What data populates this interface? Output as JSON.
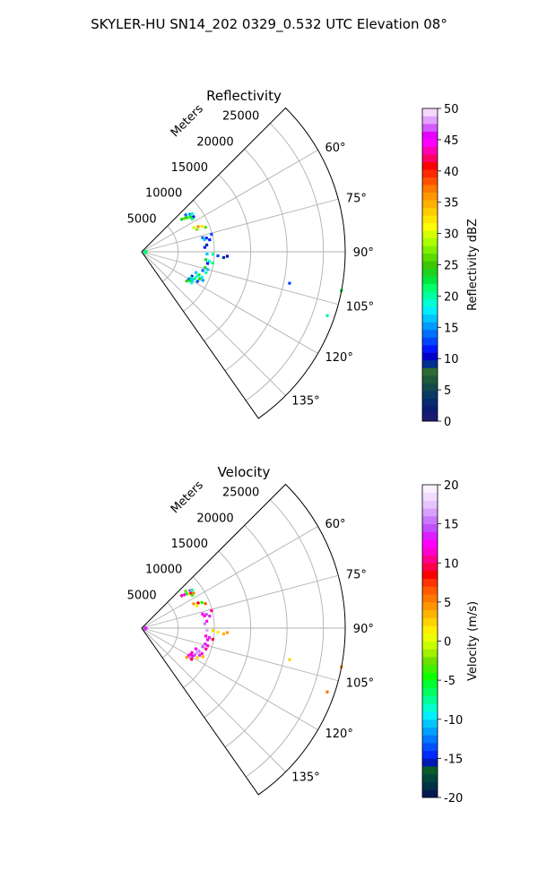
{
  "figure": {
    "suptitle": "SKYLER-HU  SN14_202  0329_0.532 UTC Elevation 08°"
  },
  "panels": [
    {
      "title": "Reflectivity",
      "range_axis_label": "Meters",
      "range_ticks": [
        "5000",
        "10000",
        "15000",
        "20000",
        "25000"
      ],
      "azimuth_ticks": [
        "60°",
        "75°",
        "90°",
        "105°",
        "120°",
        "135°"
      ],
      "colorbar": {
        "label": "Reflectivity dBZ",
        "ticks": [
          "0",
          "5",
          "10",
          "15",
          "20",
          "25",
          "30",
          "35",
          "40",
          "45",
          "50"
        ]
      }
    },
    {
      "title": "Velocity",
      "range_axis_label": "Meters",
      "range_ticks": [
        "5000",
        "10000",
        "15000",
        "20000",
        "25000"
      ],
      "azimuth_ticks": [
        "60°",
        "75°",
        "90°",
        "105°",
        "120°",
        "135°"
      ],
      "colorbar": {
        "label": "Velocity (m/s)",
        "ticks": [
          "-20",
          "-15",
          "-10",
          "-5",
          "0",
          "5",
          "10",
          "15",
          "20"
        ]
      }
    }
  ],
  "chart_data": [
    {
      "type": "heatmap",
      "projection": "polar-sector",
      "title": "Reflectivity",
      "range_label": "Meters",
      "range_lim": [
        0,
        28000
      ],
      "range_ticks": [
        5000,
        10000,
        15000,
        20000,
        25000
      ],
      "azimuth_lim_deg": [
        45,
        145
      ],
      "azimuth_ticks_deg": [
        60,
        75,
        90,
        105,
        120,
        135
      ],
      "grid": true,
      "colorbar": {
        "label": "Reflectivity dBZ",
        "vmin": 0,
        "vmax": 50,
        "steps": 40,
        "ticks": [
          0,
          5,
          10,
          15,
          20,
          25,
          30,
          35,
          40,
          45,
          50
        ]
      },
      "points": [
        {
          "az": 51,
          "r": 7100,
          "v": 24
        },
        {
          "az": 52,
          "r": 7500,
          "v": 26
        },
        {
          "az": 53,
          "r": 7800,
          "v": 22
        },
        {
          "az": 50,
          "r": 7900,
          "v": 14
        },
        {
          "az": 54,
          "r": 8100,
          "v": 28
        },
        {
          "az": 55,
          "r": 8300,
          "v": 23
        },
        {
          "az": 52,
          "r": 8400,
          "v": 15
        },
        {
          "az": 53,
          "r": 8700,
          "v": 19
        },
        {
          "az": 56,
          "r": 8600,
          "v": 12
        },
        {
          "az": 57,
          "r": 8300,
          "v": 21
        },
        {
          "az": 65,
          "r": 7900,
          "v": 30
        },
        {
          "az": 66,
          "r": 8500,
          "v": 36
        },
        {
          "az": 67,
          "r": 9000,
          "v": 32
        },
        {
          "az": 68,
          "r": 8200,
          "v": 27
        },
        {
          "az": 69,
          "r": 9400,
          "v": 26
        },
        {
          "az": 77,
          "r": 8600,
          "v": 14
        },
        {
          "az": 78,
          "r": 9100,
          "v": 12
        },
        {
          "az": 79,
          "r": 8800,
          "v": 16
        },
        {
          "az": 80,
          "r": 9500,
          "v": 11
        },
        {
          "az": 76,
          "r": 9900,
          "v": 13
        },
        {
          "az": 84,
          "r": 9000,
          "v": 9
        },
        {
          "az": 86,
          "r": 8700,
          "v": 11
        },
        {
          "az": 92,
          "r": 9000,
          "v": 17
        },
        {
          "az": 92,
          "r": 9800,
          "v": 20
        },
        {
          "az": 93,
          "r": 10500,
          "v": 13
        },
        {
          "az": 94,
          "r": 11300,
          "v": 9
        },
        {
          "az": 93,
          "r": 11800,
          "v": 10
        },
        {
          "az": 97,
          "r": 8900,
          "v": 23
        },
        {
          "az": 98,
          "r": 9400,
          "v": 19
        },
        {
          "az": 99,
          "r": 9900,
          "v": 21
        },
        {
          "az": 100,
          "r": 9200,
          "v": 12
        },
        {
          "az": 104,
          "r": 9000,
          "v": 24
        },
        {
          "az": 105,
          "r": 9400,
          "v": 16
        },
        {
          "az": 107,
          "r": 8800,
          "v": 14
        },
        {
          "az": 108,
          "r": 9300,
          "v": 20
        },
        {
          "az": 111,
          "r": 8000,
          "v": 16
        },
        {
          "az": 112,
          "r": 8500,
          "v": 22
        },
        {
          "az": 113,
          "r": 9000,
          "v": 18
        },
        {
          "az": 114,
          "r": 8300,
          "v": 19
        },
        {
          "az": 115,
          "r": 8800,
          "v": 24
        },
        {
          "az": 116,
          "r": 7700,
          "v": 12
        },
        {
          "az": 117,
          "r": 8200,
          "v": 21
        },
        {
          "az": 118,
          "r": 7700,
          "v": 20
        },
        {
          "az": 119,
          "r": 8000,
          "v": 17
        },
        {
          "az": 120,
          "r": 7500,
          "v": 14
        },
        {
          "az": 121,
          "r": 7800,
          "v": 22
        },
        {
          "az": 122,
          "r": 8100,
          "v": 19
        },
        {
          "az": 115,
          "r": 9300,
          "v": 15
        },
        {
          "az": 118,
          "r": 8700,
          "v": 13
        },
        {
          "az": 123,
          "r": 7400,
          "v": 24
        },
        {
          "az": 102,
          "r": 20800,
          "v": 13
        },
        {
          "az": 101,
          "r": 28000,
          "v": 22
        },
        {
          "az": 109,
          "r": 27000,
          "v": 20
        },
        {
          "az": 86,
          "r": 500,
          "v": 20
        },
        {
          "az": 92,
          "r": 600,
          "v": 22
        },
        {
          "az": 98,
          "r": 500,
          "v": 19
        },
        {
          "az": 104,
          "r": 500,
          "v": 21
        }
      ]
    },
    {
      "type": "heatmap",
      "projection": "polar-sector",
      "title": "Velocity",
      "range_label": "Meters",
      "range_lim": [
        0,
        28000
      ],
      "range_ticks": [
        5000,
        10000,
        15000,
        20000,
        25000
      ],
      "azimuth_lim_deg": [
        45,
        145
      ],
      "azimuth_ticks_deg": [
        60,
        75,
        90,
        105,
        120,
        135
      ],
      "grid": true,
      "colorbar": {
        "label": "Velocity (m/s)",
        "vmin": -20,
        "vmax": 20,
        "steps": 40,
        "ticks": [
          -20,
          -15,
          -10,
          -5,
          0,
          5,
          10,
          15,
          20
        ]
      },
      "points": [
        {
          "az": 51,
          "r": 7100,
          "v": 10
        },
        {
          "az": 52,
          "r": 7500,
          "v": 12
        },
        {
          "az": 53,
          "r": 7800,
          "v": -6
        },
        {
          "az": 50,
          "r": 7900,
          "v": -3
        },
        {
          "az": 54,
          "r": 8100,
          "v": 2
        },
        {
          "az": 55,
          "r": 8300,
          "v": 9
        },
        {
          "az": 52,
          "r": 8400,
          "v": 14
        },
        {
          "az": 53,
          "r": 8700,
          "v": -8
        },
        {
          "az": 56,
          "r": 8600,
          "v": 5
        },
        {
          "az": 57,
          "r": 8300,
          "v": -4
        },
        {
          "az": 65,
          "r": 7900,
          "v": 4
        },
        {
          "az": 66,
          "r": 8500,
          "v": 8
        },
        {
          "az": 67,
          "r": 9000,
          "v": -5
        },
        {
          "az": 68,
          "r": 8200,
          "v": 1
        },
        {
          "az": 69,
          "r": 9400,
          "v": 6
        },
        {
          "az": 77,
          "r": 8600,
          "v": 12
        },
        {
          "az": 78,
          "r": 9100,
          "v": 14
        },
        {
          "az": 79,
          "r": 8800,
          "v": 11
        },
        {
          "az": 80,
          "r": 9500,
          "v": 13
        },
        {
          "az": 76,
          "r": 9900,
          "v": 10
        },
        {
          "az": 84,
          "r": 9000,
          "v": 12
        },
        {
          "az": 86,
          "r": 8700,
          "v": 15
        },
        {
          "az": 92,
          "r": 9000,
          "v": 16
        },
        {
          "az": 92,
          "r": 9800,
          "v": 2
        },
        {
          "az": 93,
          "r": 10500,
          "v": 1
        },
        {
          "az": 94,
          "r": 11300,
          "v": 3
        },
        {
          "az": 93,
          "r": 11800,
          "v": 4
        },
        {
          "az": 97,
          "r": 8900,
          "v": 11
        },
        {
          "az": 98,
          "r": 9400,
          "v": 13
        },
        {
          "az": 99,
          "r": 9900,
          "v": 9
        },
        {
          "az": 100,
          "r": 9200,
          "v": 12
        },
        {
          "az": 104,
          "r": 9000,
          "v": 13
        },
        {
          "az": 105,
          "r": 9400,
          "v": 11
        },
        {
          "az": 107,
          "r": 8800,
          "v": 14
        },
        {
          "az": 108,
          "r": 9300,
          "v": 10
        },
        {
          "az": 111,
          "r": 8000,
          "v": 12
        },
        {
          "az": 112,
          "r": 8500,
          "v": 15
        },
        {
          "az": 113,
          "r": 9000,
          "v": 11
        },
        {
          "az": 114,
          "r": 8300,
          "v": 16
        },
        {
          "az": 115,
          "r": 8800,
          "v": 13
        },
        {
          "az": 116,
          "r": 7700,
          "v": 12
        },
        {
          "az": 117,
          "r": 8200,
          "v": 14
        },
        {
          "az": 118,
          "r": 7700,
          "v": 10
        },
        {
          "az": 119,
          "r": 8000,
          "v": 11
        },
        {
          "az": 120,
          "r": 7500,
          "v": 12
        },
        {
          "az": 121,
          "r": 7800,
          "v": 15
        },
        {
          "az": 122,
          "r": 8100,
          "v": 9
        },
        {
          "az": 115,
          "r": 9300,
          "v": 3
        },
        {
          "az": 118,
          "r": 8700,
          "v": 2
        },
        {
          "az": 123,
          "r": 7400,
          "v": 4
        },
        {
          "az": 102,
          "r": 20800,
          "v": 2
        },
        {
          "az": 101,
          "r": 28000,
          "v": 4
        },
        {
          "az": 109,
          "r": 27000,
          "v": 5
        },
        {
          "az": 86,
          "r": 500,
          "v": 12
        },
        {
          "az": 92,
          "r": 600,
          "v": 14
        },
        {
          "az": 98,
          "r": 500,
          "v": 11
        },
        {
          "az": 104,
          "r": 500,
          "v": 13
        }
      ]
    }
  ]
}
